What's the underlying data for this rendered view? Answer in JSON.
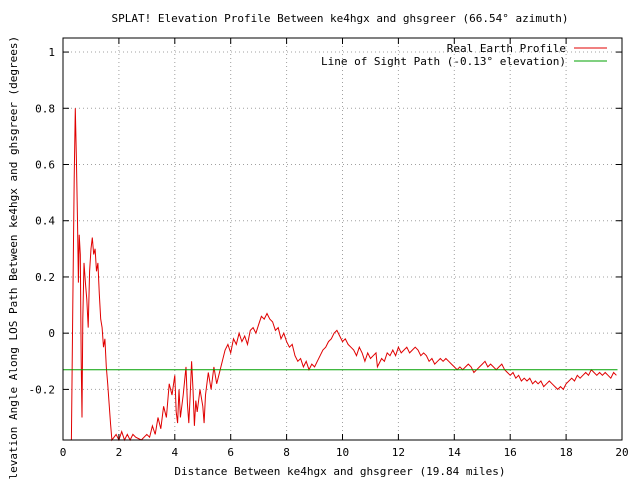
{
  "chart_data": {
    "type": "line",
    "title": "SPLAT! Elevation Profile Between ke4hgx and ghsgreer (66.54° azimuth)",
    "xlabel": "Distance Between ke4hgx and ghsgreer (19.84 miles)",
    "ylabel": "Elevation Angle Along LOS Path Between ke4hgx and ghsgreer (degrees)",
    "xlim": [
      0,
      20
    ],
    "ylim": [
      -0.38,
      1.05
    ],
    "x_ticks": [
      0,
      2,
      4,
      6,
      8,
      10,
      12,
      14,
      16,
      18,
      20
    ],
    "y_ticks": [
      -0.2,
      0,
      0.2,
      0.4,
      0.6,
      0.8,
      1
    ],
    "x_tick_labels": [
      "0",
      "2",
      "4",
      "6",
      "8",
      "10",
      "12",
      "14",
      "16",
      "18",
      "20"
    ],
    "y_tick_labels": [
      "-0.2",
      "0",
      "0.2",
      "0.4",
      "0.6",
      "0.8",
      "1"
    ],
    "grid": true,
    "legend_position": "top-right",
    "series": [
      {
        "name": "Real Earth Profile",
        "color": "#e00000",
        "points": [
          [
            0.3,
            -0.38
          ],
          [
            0.35,
            0.1
          ],
          [
            0.4,
            0.55
          ],
          [
            0.44,
            0.8
          ],
          [
            0.48,
            0.62
          ],
          [
            0.52,
            0.4
          ],
          [
            0.55,
            0.18
          ],
          [
            0.58,
            0.35
          ],
          [
            0.62,
            0.28
          ],
          [
            0.65,
            -0.1
          ],
          [
            0.68,
            -0.3
          ],
          [
            0.71,
            0.05
          ],
          [
            0.75,
            0.25
          ],
          [
            0.8,
            0.18
          ],
          [
            0.85,
            0.12
          ],
          [
            0.9,
            0.02
          ],
          [
            0.95,
            0.22
          ],
          [
            1.0,
            0.3
          ],
          [
            1.05,
            0.34
          ],
          [
            1.1,
            0.28
          ],
          [
            1.15,
            0.3
          ],
          [
            1.2,
            0.22
          ],
          [
            1.25,
            0.25
          ],
          [
            1.3,
            0.14
          ],
          [
            1.35,
            0.05
          ],
          [
            1.4,
            0.02
          ],
          [
            1.45,
            -0.05
          ],
          [
            1.5,
            -0.02
          ],
          [
            1.55,
            -0.12
          ],
          [
            1.6,
            -0.18
          ],
          [
            1.65,
            -0.25
          ],
          [
            1.7,
            -0.32
          ],
          [
            1.75,
            -0.38
          ],
          [
            1.9,
            -0.36
          ],
          [
            2.0,
            -0.38
          ],
          [
            2.1,
            -0.35
          ],
          [
            2.2,
            -0.38
          ],
          [
            2.3,
            -0.36
          ],
          [
            2.4,
            -0.38
          ],
          [
            2.5,
            -0.36
          ],
          [
            2.6,
            -0.37
          ],
          [
            2.8,
            -0.38
          ],
          [
            3.0,
            -0.36
          ],
          [
            3.1,
            -0.37
          ],
          [
            3.2,
            -0.33
          ],
          [
            3.3,
            -0.36
          ],
          [
            3.4,
            -0.3
          ],
          [
            3.5,
            -0.34
          ],
          [
            3.6,
            -0.26
          ],
          [
            3.7,
            -0.3
          ],
          [
            3.8,
            -0.18
          ],
          [
            3.9,
            -0.22
          ],
          [
            4.0,
            -0.15
          ],
          [
            4.05,
            -0.28
          ],
          [
            4.1,
            -0.32
          ],
          [
            4.15,
            -0.2
          ],
          [
            4.2,
            -0.3
          ],
          [
            4.3,
            -0.22
          ],
          [
            4.4,
            -0.12
          ],
          [
            4.45,
            -0.25
          ],
          [
            4.5,
            -0.32
          ],
          [
            4.55,
            -0.22
          ],
          [
            4.6,
            -0.1
          ],
          [
            4.65,
            -0.2
          ],
          [
            4.7,
            -0.33
          ],
          [
            4.75,
            -0.24
          ],
          [
            4.8,
            -0.28
          ],
          [
            4.9,
            -0.2
          ],
          [
            5.0,
            -0.26
          ],
          [
            5.05,
            -0.32
          ],
          [
            5.1,
            -0.22
          ],
          [
            5.2,
            -0.14
          ],
          [
            5.3,
            -0.2
          ],
          [
            5.4,
            -0.12
          ],
          [
            5.5,
            -0.18
          ],
          [
            5.6,
            -0.14
          ],
          [
            5.7,
            -0.1
          ],
          [
            5.8,
            -0.06
          ],
          [
            5.9,
            -0.04
          ],
          [
            6.0,
            -0.07
          ],
          [
            6.1,
            -0.02
          ],
          [
            6.2,
            -0.04
          ],
          [
            6.3,
            0.0
          ],
          [
            6.4,
            -0.03
          ],
          [
            6.5,
            -0.01
          ],
          [
            6.6,
            -0.04
          ],
          [
            6.7,
            0.01
          ],
          [
            6.8,
            0.02
          ],
          [
            6.9,
            0.0
          ],
          [
            7.0,
            0.03
          ],
          [
            7.1,
            0.06
          ],
          [
            7.2,
            0.05
          ],
          [
            7.3,
            0.07
          ],
          [
            7.4,
            0.05
          ],
          [
            7.5,
            0.04
          ],
          [
            7.6,
            0.01
          ],
          [
            7.7,
            0.02
          ],
          [
            7.8,
            -0.02
          ],
          [
            7.9,
            0.0
          ],
          [
            8.0,
            -0.03
          ],
          [
            8.1,
            -0.05
          ],
          [
            8.2,
            -0.04
          ],
          [
            8.3,
            -0.08
          ],
          [
            8.4,
            -0.1
          ],
          [
            8.5,
            -0.09
          ],
          [
            8.6,
            -0.12
          ],
          [
            8.7,
            -0.1
          ],
          [
            8.8,
            -0.13
          ],
          [
            8.9,
            -0.11
          ],
          [
            9.0,
            -0.12
          ],
          [
            9.1,
            -0.1
          ],
          [
            9.2,
            -0.08
          ],
          [
            9.3,
            -0.06
          ],
          [
            9.4,
            -0.05
          ],
          [
            9.5,
            -0.03
          ],
          [
            9.6,
            -0.02
          ],
          [
            9.7,
            0.0
          ],
          [
            9.8,
            0.01
          ],
          [
            9.9,
            -0.01
          ],
          [
            10.0,
            -0.03
          ],
          [
            10.1,
            -0.02
          ],
          [
            10.2,
            -0.04
          ],
          [
            10.3,
            -0.05
          ],
          [
            10.4,
            -0.06
          ],
          [
            10.5,
            -0.08
          ],
          [
            10.6,
            -0.05
          ],
          [
            10.7,
            -0.07
          ],
          [
            10.8,
            -0.1
          ],
          [
            10.9,
            -0.07
          ],
          [
            11.0,
            -0.09
          ],
          [
            11.1,
            -0.08
          ],
          [
            11.2,
            -0.07
          ],
          [
            11.25,
            -0.12
          ],
          [
            11.3,
            -0.11
          ],
          [
            11.4,
            -0.09
          ],
          [
            11.5,
            -0.1
          ],
          [
            11.6,
            -0.07
          ],
          [
            11.7,
            -0.08
          ],
          [
            11.8,
            -0.06
          ],
          [
            11.9,
            -0.08
          ],
          [
            12.0,
            -0.05
          ],
          [
            12.1,
            -0.07
          ],
          [
            12.2,
            -0.06
          ],
          [
            12.3,
            -0.05
          ],
          [
            12.4,
            -0.07
          ],
          [
            12.5,
            -0.06
          ],
          [
            12.6,
            -0.05
          ],
          [
            12.7,
            -0.06
          ],
          [
            12.8,
            -0.08
          ],
          [
            12.9,
            -0.07
          ],
          [
            13.0,
            -0.08
          ],
          [
            13.1,
            -0.1
          ],
          [
            13.2,
            -0.09
          ],
          [
            13.3,
            -0.11
          ],
          [
            13.4,
            -0.1
          ],
          [
            13.5,
            -0.09
          ],
          [
            13.6,
            -0.1
          ],
          [
            13.7,
            -0.09
          ],
          [
            13.8,
            -0.1
          ],
          [
            13.9,
            -0.11
          ],
          [
            14.0,
            -0.12
          ],
          [
            14.1,
            -0.13
          ],
          [
            14.2,
            -0.12
          ],
          [
            14.3,
            -0.13
          ],
          [
            14.4,
            -0.12
          ],
          [
            14.5,
            -0.11
          ],
          [
            14.6,
            -0.12
          ],
          [
            14.7,
            -0.14
          ],
          [
            14.8,
            -0.13
          ],
          [
            14.9,
            -0.12
          ],
          [
            15.0,
            -0.11
          ],
          [
            15.1,
            -0.1
          ],
          [
            15.2,
            -0.12
          ],
          [
            15.3,
            -0.11
          ],
          [
            15.4,
            -0.12
          ],
          [
            15.5,
            -0.13
          ],
          [
            15.6,
            -0.12
          ],
          [
            15.7,
            -0.11
          ],
          [
            15.8,
            -0.13
          ],
          [
            15.9,
            -0.14
          ],
          [
            16.0,
            -0.15
          ],
          [
            16.1,
            -0.14
          ],
          [
            16.2,
            -0.16
          ],
          [
            16.3,
            -0.15
          ],
          [
            16.4,
            -0.17
          ],
          [
            16.5,
            -0.16
          ],
          [
            16.6,
            -0.17
          ],
          [
            16.7,
            -0.16
          ],
          [
            16.8,
            -0.18
          ],
          [
            16.9,
            -0.17
          ],
          [
            17.0,
            -0.18
          ],
          [
            17.1,
            -0.17
          ],
          [
            17.2,
            -0.19
          ],
          [
            17.3,
            -0.18
          ],
          [
            17.4,
            -0.17
          ],
          [
            17.5,
            -0.18
          ],
          [
            17.6,
            -0.19
          ],
          [
            17.7,
            -0.2
          ],
          [
            17.8,
            -0.19
          ],
          [
            17.9,
            -0.2
          ],
          [
            18.0,
            -0.18
          ],
          [
            18.1,
            -0.17
          ],
          [
            18.2,
            -0.16
          ],
          [
            18.3,
            -0.17
          ],
          [
            18.4,
            -0.15
          ],
          [
            18.5,
            -0.16
          ],
          [
            18.6,
            -0.15
          ],
          [
            18.7,
            -0.14
          ],
          [
            18.8,
            -0.15
          ],
          [
            18.9,
            -0.13
          ],
          [
            19.0,
            -0.14
          ],
          [
            19.1,
            -0.15
          ],
          [
            19.2,
            -0.14
          ],
          [
            19.3,
            -0.15
          ],
          [
            19.4,
            -0.14
          ],
          [
            19.5,
            -0.15
          ],
          [
            19.6,
            -0.16
          ],
          [
            19.7,
            -0.14
          ],
          [
            19.8,
            -0.15
          ]
        ]
      },
      {
        "name": "Line of Sight Path (-0.13° elevation)",
        "color": "#00a000",
        "points": [
          [
            0,
            -0.13
          ],
          [
            19.84,
            -0.13
          ]
        ]
      }
    ]
  }
}
